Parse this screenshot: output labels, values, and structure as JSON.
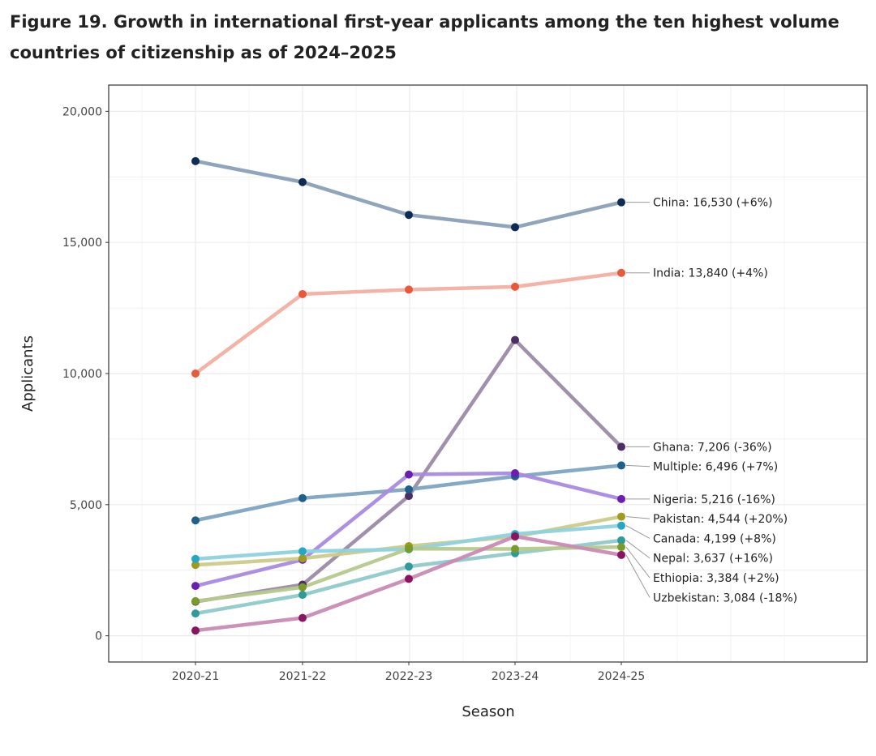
{
  "title": "Figure 19. Growth in international first-year applicants among the ten highest volume countries of citizenship as of 2024–2025",
  "chart_data": {
    "type": "line",
    "title": "Figure 19. Growth in international first-year applicants among the ten highest volume countries of citizenship as of 2024–2025",
    "xlabel": "Season",
    "ylabel": "Applicants",
    "categories": [
      "2020-21",
      "2021-22",
      "2022-23",
      "2023-24",
      "2024-25"
    ],
    "ylim": [
      -1000,
      21000
    ],
    "yticks": [
      0,
      5000,
      10000,
      15000,
      20000
    ],
    "ytick_labels": [
      "0",
      "5,000",
      "10,000",
      "15,000",
      "20,000"
    ],
    "grid": true,
    "legend": "direct labels at right end of each line",
    "series": [
      {
        "values": [
          18100,
          17300,
          16050,
          15580,
          16530
        ],
        "label": "China: 16,530 (+6%)",
        "line_color": "#8aa0b8",
        "point_color": "#0d2b55"
      },
      {
        "values": [
          10000,
          13030,
          13200,
          13310,
          13840
        ],
        "label": "India: 13,840 (+4%)",
        "line_color": "#f2afa1",
        "point_color": "#e8583a"
      },
      {
        "values": [
          1300,
          1950,
          5330,
          11280,
          7206
        ],
        "label": "Ghana: 7,206 (-36%)",
        "line_color": "#9c8aa6",
        "point_color": "#4d2e63"
      },
      {
        "values": [
          4400,
          5250,
          5580,
          6080,
          6496
        ],
        "label": "Multiple: 6,496 (+7%)",
        "line_color": "#7da3c2",
        "point_color": "#1e5f8c"
      },
      {
        "values": [
          1900,
          2900,
          6150,
          6200,
          5216
        ],
        "label": "Nigeria: 5,216 (-16%)",
        "line_color": "#a98ae0",
        "point_color": "#6a1fb0"
      },
      {
        "values": [
          2700,
          2950,
          3420,
          3780,
          4544
        ],
        "label": "Pakistan: 4,544 (+20%)",
        "line_color": "#cdca8a",
        "point_color": "#a09a20"
      },
      {
        "values": [
          2930,
          3220,
          3300,
          3880,
          4199
        ],
        "label": "Canada: 4,199 (+8%)",
        "line_color": "#8ed2df",
        "point_color": "#25a7c4"
      },
      {
        "values": [
          850,
          1560,
          2640,
          3150,
          3637
        ],
        "label": "Nepal: 3,637 (+16%)",
        "line_color": "#8fcaca",
        "point_color": "#2e9a9a"
      },
      {
        "values": [
          1320,
          1850,
          3320,
          3310,
          3384
        ],
        "label": "Ethiopia: 3,384 (+2%)",
        "line_color": "#b6c98c",
        "point_color": "#7a9a2a"
      },
      {
        "values": [
          200,
          680,
          2170,
          3790,
          3084
        ],
        "label": "Uzbekistan: 3,084 (-18%)",
        "line_color": "#c98bb4",
        "point_color": "#8a1460"
      }
    ]
  }
}
